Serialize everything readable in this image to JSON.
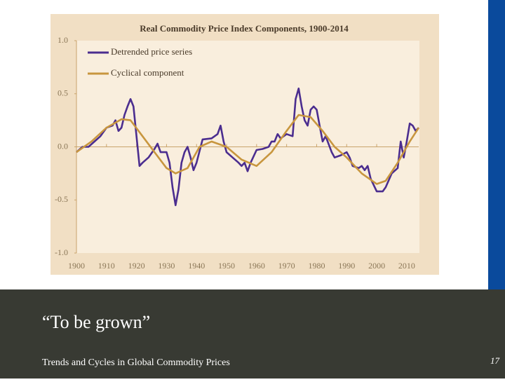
{
  "chart_data": {
    "type": "line",
    "title": "Real Commodity Price Index Components, 1900-2014",
    "xlim": [
      1900,
      2014
    ],
    "ylim": [
      -1.0,
      1.0
    ],
    "xticks": [
      1900,
      1910,
      1920,
      1930,
      1940,
      1950,
      1960,
      1970,
      1980,
      1990,
      2000,
      2010
    ],
    "yticks": [
      {
        "value": -1.0,
        "label": "-1.0"
      },
      -0.5,
      {
        "value": 0,
        "label": "0.0"
      },
      0.5,
      {
        "value": 1.0,
        "label": "1.0"
      }
    ],
    "legend": "upper-left",
    "series": [
      {
        "name": "Detrended price series",
        "color": "#4b2d8f",
        "x": [
          1900,
          1902,
          1904,
          1906,
          1908,
          1910,
          1912,
          1913,
          1914,
          1915,
          1916,
          1917,
          1918,
          1919,
          1920,
          1921,
          1922,
          1924,
          1926,
          1927,
          1928,
          1930,
          1931,
          1932,
          1933,
          1934,
          1935,
          1936,
          1937,
          1938,
          1939,
          1940,
          1942,
          1945,
          1947,
          1948,
          1949,
          1950,
          1952,
          1954,
          1955,
          1956,
          1957,
          1958,
          1960,
          1962,
          1964,
          1965,
          1966,
          1967,
          1968,
          1970,
          1972,
          1973,
          1974,
          1975,
          1976,
          1977,
          1978,
          1979,
          1980,
          1981,
          1982,
          1983,
          1985,
          1986,
          1988,
          1990,
          1991,
          1992,
          1994,
          1995,
          1996,
          1997,
          1998,
          2000,
          2002,
          2003,
          2005,
          2007,
          2008,
          2009,
          2010,
          2011,
          2012,
          2013,
          2014
        ],
        "values": [
          -0.05,
          0.0,
          0.0,
          0.05,
          0.1,
          0.18,
          0.2,
          0.25,
          0.15,
          0.18,
          0.3,
          0.38,
          0.45,
          0.38,
          0.1,
          -0.18,
          -0.15,
          -0.1,
          -0.02,
          0.03,
          -0.05,
          -0.05,
          -0.15,
          -0.38,
          -0.55,
          -0.4,
          -0.15,
          -0.05,
          0.0,
          -0.1,
          -0.22,
          -0.15,
          0.07,
          0.08,
          0.12,
          0.2,
          0.05,
          -0.05,
          -0.1,
          -0.15,
          -0.18,
          -0.15,
          -0.23,
          -0.15,
          -0.03,
          -0.02,
          0.0,
          0.05,
          0.05,
          0.12,
          0.08,
          0.12,
          0.1,
          0.45,
          0.55,
          0.38,
          0.25,
          0.2,
          0.35,
          0.38,
          0.35,
          0.2,
          0.05,
          0.1,
          -0.05,
          -0.1,
          -0.08,
          -0.05,
          -0.1,
          -0.18,
          -0.2,
          -0.18,
          -0.22,
          -0.18,
          -0.3,
          -0.42,
          -0.42,
          -0.38,
          -0.25,
          -0.2,
          0.05,
          -0.1,
          0.05,
          0.22,
          0.2,
          0.15,
          0.18
        ]
      },
      {
        "name": "Cyclical component",
        "color": "#c8963e",
        "x": [
          1900,
          1905,
          1910,
          1915,
          1918,
          1922,
          1926,
          1930,
          1933,
          1937,
          1941,
          1945,
          1950,
          1955,
          1960,
          1965,
          1970,
          1974,
          1978,
          1982,
          1986,
          1990,
          1995,
          2000,
          2003,
          2007,
          2011,
          2014
        ],
        "values": [
          -0.05,
          0.05,
          0.18,
          0.26,
          0.25,
          0.1,
          -0.05,
          -0.2,
          -0.25,
          -0.2,
          0.0,
          0.05,
          0.0,
          -0.12,
          -0.18,
          -0.05,
          0.15,
          0.3,
          0.28,
          0.15,
          0.0,
          -0.1,
          -0.25,
          -0.35,
          -0.32,
          -0.15,
          0.05,
          0.18
        ]
      }
    ]
  },
  "slide": {
    "caption": "“To be grown”",
    "footer": "Trends and Cycles in Global Commodity Prices",
    "page_number": "17"
  }
}
